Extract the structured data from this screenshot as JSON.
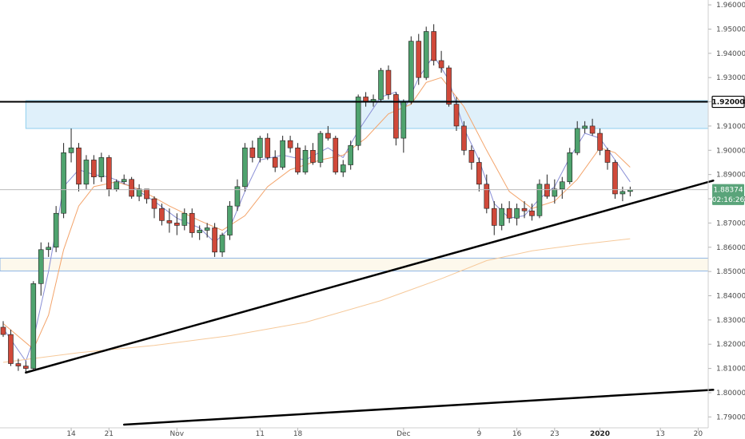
{
  "chart_data": {
    "type": "candlestick",
    "y_axis": {
      "range": [
        1.7855,
        1.962
      ],
      "ticks": [
        "1.96000",
        "1.95000",
        "1.94000",
        "1.93000",
        "1.92000",
        "1.91000",
        "1.90000",
        "1.89000",
        "1.88000",
        "1.87000",
        "1.86000",
        "1.85000",
        "1.84000",
        "1.83000",
        "1.82000",
        "1.81000",
        "1.80000",
        "1.79000"
      ]
    },
    "x_axis": {
      "ticks": [
        {
          "label": "14",
          "index": 9,
          "bold": false
        },
        {
          "label": "21",
          "index": 14,
          "bold": false
        },
        {
          "label": "Nov",
          "index": 23,
          "bold": false
        },
        {
          "label": "11",
          "index": 34,
          "bold": false
        },
        {
          "label": "18",
          "index": 39,
          "bold": false
        },
        {
          "label": "Dec",
          "index": 53,
          "bold": false
        },
        {
          "label": "9",
          "index": 63,
          "bold": false
        },
        {
          "label": "16",
          "index": 68,
          "bold": false
        },
        {
          "label": "23",
          "index": 73,
          "bold": false
        },
        {
          "label": "2020",
          "index": 79,
          "bold": true
        },
        {
          "label": "13",
          "index": 87,
          "bold": false
        },
        {
          "label": "20",
          "index": 92,
          "bold": false
        }
      ]
    },
    "price_tags": [
      {
        "label": "1.92000",
        "value": 1.92,
        "style": "level"
      },
      {
        "label": "1.88374",
        "value": 1.88374,
        "style": "last"
      },
      {
        "label": "02:16:26",
        "value": 1.8797,
        "style": "countdown"
      }
    ],
    "candles": [
      [
        1.827,
        1.8295,
        1.823,
        1.824
      ],
      [
        1.824,
        1.826,
        1.811,
        1.812
      ],
      [
        1.812,
        1.814,
        1.809,
        1.811
      ],
      [
        1.811,
        1.813,
        1.808,
        1.81
      ],
      [
        1.81,
        1.846,
        1.809,
        1.845
      ],
      [
        1.845,
        1.862,
        1.84,
        1.859
      ],
      [
        1.859,
        1.862,
        1.856,
        1.86
      ],
      [
        1.86,
        1.877,
        1.858,
        1.874
      ],
      [
        1.874,
        1.903,
        1.872,
        1.899
      ],
      [
        1.899,
        1.909,
        1.895,
        1.901
      ],
      [
        1.901,
        1.903,
        1.883,
        1.886
      ],
      [
        1.886,
        1.898,
        1.884,
        1.896
      ],
      [
        1.896,
        1.898,
        1.886,
        1.889
      ],
      [
        1.889,
        1.899,
        1.887,
        1.897
      ],
      [
        1.897,
        1.898,
        1.881,
        1.884
      ],
      [
        1.884,
        1.888,
        1.883,
        1.887
      ],
      [
        1.887,
        1.89,
        1.886,
        1.888
      ],
      [
        1.888,
        1.889,
        1.88,
        1.881
      ],
      [
        1.881,
        1.886,
        1.879,
        1.884
      ],
      [
        1.884,
        1.883,
        1.878,
        1.88
      ],
      [
        1.88,
        1.881,
        1.872,
        1.876
      ],
      [
        1.876,
        1.878,
        1.869,
        1.871
      ],
      [
        1.871,
        1.876,
        1.866,
        1.87
      ],
      [
        1.87,
        1.874,
        1.865,
        1.869
      ],
      [
        1.869,
        1.876,
        1.867,
        1.874
      ],
      [
        1.874,
        1.876,
        1.864,
        1.866
      ],
      [
        1.866,
        1.869,
        1.863,
        1.867
      ],
      [
        1.867,
        1.87,
        1.864,
        1.868
      ],
      [
        1.868,
        1.87,
        1.856,
        1.858
      ],
      [
        1.858,
        1.866,
        1.856,
        1.865
      ],
      [
        1.865,
        1.879,
        1.863,
        1.877
      ],
      [
        1.877,
        1.888,
        1.875,
        1.885
      ],
      [
        1.885,
        1.903,
        1.883,
        1.901
      ],
      [
        1.901,
        1.904,
        1.895,
        1.897
      ],
      [
        1.897,
        1.906,
        1.895,
        1.905
      ],
      [
        1.905,
        1.907,
        1.896,
        1.897
      ],
      [
        1.897,
        1.9,
        1.891,
        1.893
      ],
      [
        1.893,
        1.906,
        1.892,
        1.904
      ],
      [
        1.904,
        1.906,
        1.899,
        1.901
      ],
      [
        1.901,
        1.903,
        1.89,
        1.891
      ],
      [
        1.891,
        1.902,
        1.89,
        1.9
      ],
      [
        1.9,
        1.903,
        1.894,
        1.895
      ],
      [
        1.895,
        1.908,
        1.893,
        1.907
      ],
      [
        1.907,
        1.91,
        1.904,
        1.905
      ],
      [
        1.905,
        1.906,
        1.89,
        1.891
      ],
      [
        1.891,
        1.896,
        1.889,
        1.894
      ],
      [
        1.894,
        1.904,
        1.892,
        1.902
      ],
      [
        1.902,
        1.923,
        1.9,
        1.922
      ],
      [
        1.922,
        1.924,
        1.918,
        1.92
      ],
      [
        1.92,
        1.923,
        1.918,
        1.921
      ],
      [
        1.921,
        1.934,
        1.92,
        1.933
      ],
      [
        1.933,
        1.935,
        1.921,
        1.923
      ],
      [
        1.923,
        1.924,
        1.902,
        1.905
      ],
      [
        1.905,
        1.921,
        1.899,
        1.92
      ],
      [
        1.92,
        1.947,
        1.919,
        1.945
      ],
      [
        1.945,
        1.948,
        1.927,
        1.93
      ],
      [
        1.93,
        1.951,
        1.929,
        1.949
      ],
      [
        1.949,
        1.952,
        1.935,
        1.937
      ],
      [
        1.937,
        1.941,
        1.932,
        1.934
      ],
      [
        1.934,
        1.935,
        1.918,
        1.919
      ],
      [
        1.919,
        1.922,
        1.908,
        1.91
      ],
      [
        1.91,
        1.912,
        1.898,
        1.9
      ],
      [
        1.9,
        1.902,
        1.892,
        1.895
      ],
      [
        1.895,
        1.897,
        1.883,
        1.886
      ],
      [
        1.886,
        1.89,
        1.874,
        1.876
      ],
      [
        1.876,
        1.879,
        1.865,
        1.869
      ],
      [
        1.869,
        1.878,
        1.867,
        1.876
      ],
      [
        1.876,
        1.879,
        1.87,
        1.872
      ],
      [
        1.872,
        1.878,
        1.869,
        1.876
      ],
      [
        1.876,
        1.879,
        1.872,
        1.875
      ],
      [
        1.875,
        1.878,
        1.871,
        1.873
      ],
      [
        1.873,
        1.888,
        1.872,
        1.886
      ],
      [
        1.886,
        1.89,
        1.88,
        1.881
      ],
      [
        1.881,
        1.888,
        1.878,
        1.884
      ],
      [
        1.884,
        1.889,
        1.88,
        1.887
      ],
      [
        1.887,
        1.901,
        1.886,
        1.899
      ],
      [
        1.899,
        1.912,
        1.898,
        1.909
      ],
      [
        1.909,
        1.912,
        1.907,
        1.91
      ],
      [
        1.91,
        1.913,
        1.906,
        1.907
      ],
      [
        1.907,
        1.909,
        1.898,
        1.9
      ],
      [
        1.9,
        1.901,
        1.892,
        1.895
      ],
      [
        1.895,
        1.896,
        1.88,
        1.882
      ],
      [
        1.882,
        1.885,
        1.879,
        1.883
      ],
      [
        1.883,
        1.885,
        1.881,
        1.8837
      ]
    ],
    "indicators": [
      {
        "color": "#8a8fd6",
        "values": [
          [
            0,
            1.8265
          ],
          [
            3,
            1.813
          ],
          [
            4,
            1.822
          ],
          [
            6,
            1.85
          ],
          [
            8,
            1.885
          ],
          [
            10,
            1.892
          ],
          [
            12,
            1.89
          ],
          [
            14,
            1.889
          ],
          [
            17,
            1.885
          ],
          [
            20,
            1.879
          ],
          [
            23,
            1.872
          ],
          [
            26,
            1.868
          ],
          [
            28,
            1.862
          ],
          [
            30,
            1.868
          ],
          [
            32,
            1.883
          ],
          [
            34,
            1.896
          ],
          [
            37,
            1.898
          ],
          [
            40,
            1.896
          ],
          [
            43,
            1.901
          ],
          [
            45,
            1.897
          ],
          [
            47,
            1.908
          ],
          [
            50,
            1.922
          ],
          [
            52,
            1.924
          ],
          [
            53,
            1.916
          ],
          [
            55,
            1.93
          ],
          [
            57,
            1.939
          ],
          [
            59,
            1.929
          ],
          [
            61,
            1.909
          ],
          [
            63,
            1.896
          ],
          [
            65,
            1.878
          ],
          [
            67,
            1.872
          ],
          [
            69,
            1.873
          ],
          [
            71,
            1.88
          ],
          [
            73,
            1.885
          ],
          [
            75,
            1.897
          ],
          [
            77,
            1.907
          ],
          [
            79,
            1.905
          ],
          [
            81,
            1.896
          ],
          [
            83,
            1.887
          ]
        ]
      },
      {
        "color": "#f3a46b",
        "values": [
          [
            0,
            1.8285
          ],
          [
            4,
            1.818
          ],
          [
            6,
            1.832
          ],
          [
            8,
            1.859
          ],
          [
            10,
            1.877
          ],
          [
            12,
            1.885
          ],
          [
            15,
            1.887
          ],
          [
            18,
            1.884
          ],
          [
            22,
            1.877
          ],
          [
            26,
            1.871
          ],
          [
            29,
            1.867
          ],
          [
            32,
            1.873
          ],
          [
            35,
            1.885
          ],
          [
            38,
            1.892
          ],
          [
            42,
            1.896
          ],
          [
            45,
            1.898
          ],
          [
            48,
            1.905
          ],
          [
            51,
            1.915
          ],
          [
            54,
            1.919
          ],
          [
            56,
            1.928
          ],
          [
            58,
            1.93
          ],
          [
            61,
            1.918
          ],
          [
            64,
            1.9
          ],
          [
            67,
            1.883
          ],
          [
            70,
            1.876
          ],
          [
            73,
            1.879
          ],
          [
            76,
            1.888
          ],
          [
            79,
            1.901
          ],
          [
            81,
            1.899
          ],
          [
            83,
            1.893
          ]
        ]
      },
      {
        "color": "#f6c99a",
        "values": [
          [
            0,
            1.8125
          ],
          [
            10,
            1.8165
          ],
          [
            20,
            1.8195
          ],
          [
            30,
            1.8235
          ],
          [
            40,
            1.829
          ],
          [
            50,
            1.838
          ],
          [
            58,
            1.847
          ],
          [
            64,
            1.8545
          ],
          [
            70,
            1.8585
          ],
          [
            76,
            1.861
          ],
          [
            83,
            1.8635
          ]
        ]
      }
    ],
    "zones": [
      {
        "fill": "#dff0fa",
        "stroke": "#8fcfee",
        "from_index": 3,
        "to_index": 94,
        "low": 1.909,
        "high": 1.9205
      },
      {
        "fill": "#fdf8ec",
        "stroke": "#8fb6e6",
        "from_index": -1,
        "to_index": 94,
        "low": 1.8502,
        "high": 1.8555
      }
    ],
    "lines": [
      {
        "type": "horizontal",
        "value": 1.92,
        "color": "#000000",
        "width": 2
      },
      {
        "type": "horizontal",
        "value": 1.88374,
        "color": "#bbbbbb",
        "width": 1
      },
      {
        "type": "trend",
        "from": [
          3,
          1.8083
        ],
        "to": [
          94,
          1.8875
        ],
        "color": "#000000",
        "width": 2.5
      },
      {
        "type": "trend",
        "from": [
          16,
          1.7868
        ],
        "to": [
          94,
          1.8012
        ],
        "color": "#000000",
        "width": 2.5
      }
    ],
    "colors": {
      "up": "#4fa36e",
      "down": "#d0493a",
      "wick": "#222222",
      "last_tag": "#5aa47a",
      "level_tag": "#000000"
    }
  }
}
